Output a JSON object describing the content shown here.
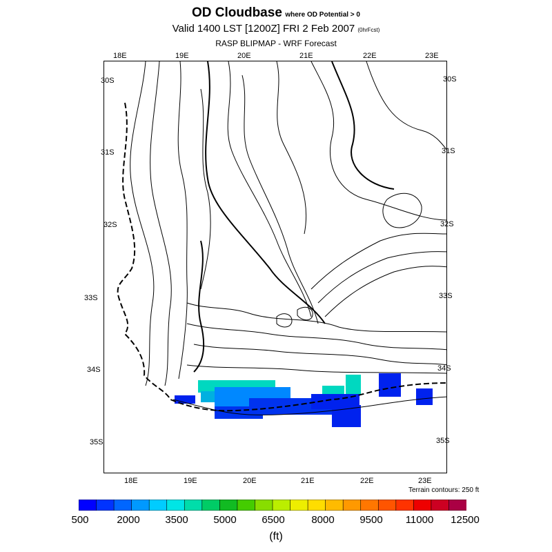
{
  "header": {
    "title": "OD Cloudbase",
    "title_qualifier": "where OD Potential > 0",
    "valid_line": "Valid 1400 LST [1200Z] FRI 2 Feb 2007",
    "forecast_tag": "(0hrFcst)",
    "model_line": "RASP BLIPMAP - WRF Forecast"
  },
  "map": {
    "top_lon_labels": [
      "18E",
      "19E",
      "20E",
      "21E",
      "22E",
      "23E"
    ],
    "bottom_lon_labels": [
      "18E",
      "19E",
      "20E",
      "21E",
      "22E",
      "23E"
    ],
    "left_lat_labels": [
      "30S",
      "31S",
      "32S",
      "33S",
      "34S",
      "35S"
    ],
    "right_lat_labels": [
      "30S",
      "31S",
      "32S",
      "33S",
      "34S",
      "35S"
    ],
    "terrain_note": "Terrain contours: 250 ft",
    "cloudbase_colors": {
      "low": "#0022ee",
      "mid": "#0088ff",
      "high": "#00d8c0"
    }
  },
  "colorbar": {
    "colors": [
      "#0000ff",
      "#0033ff",
      "#0066ff",
      "#0099ff",
      "#00ccff",
      "#00e5e5",
      "#00ddaa",
      "#00cc66",
      "#11bb22",
      "#44cc00",
      "#88dd00",
      "#bbee00",
      "#eeee00",
      "#ffdd00",
      "#ffbb00",
      "#ff9900",
      "#ff7700",
      "#ff5500",
      "#ff3300",
      "#ee0000",
      "#cc0022",
      "#aa0044"
    ],
    "labels": [
      "500",
      "2000",
      "3500",
      "5000",
      "6500",
      "8000",
      "9500",
      "11000",
      "12500"
    ],
    "unit": "(ft)"
  }
}
